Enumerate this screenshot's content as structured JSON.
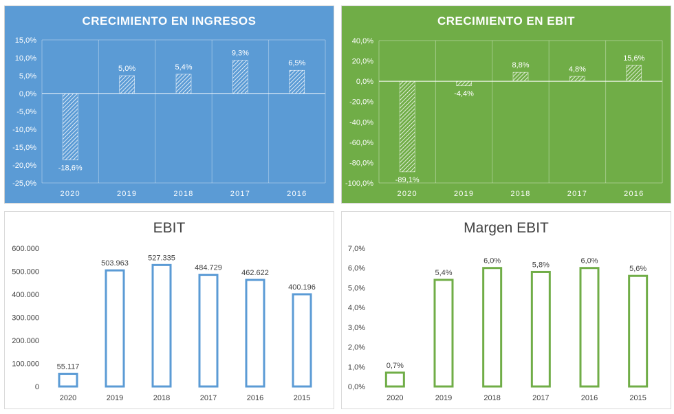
{
  "charts": [
    {
      "title": "CRECIMIENTO EN INGRESOS",
      "chart_data": {
        "type": "bar",
        "categories": [
          "2020",
          "2019",
          "2018",
          "2017",
          "2016"
        ],
        "values": [
          -18.6,
          5.0,
          5.4,
          9.3,
          6.5
        ],
        "data_labels": [
          "-18,6%",
          "5,0%",
          "5,4%",
          "9,3%",
          "6,5%"
        ],
        "yticks": [
          "15,0%",
          "10,0%",
          "5,0%",
          "0,0%",
          "-5,0%",
          "-10,0%",
          "-15,0%",
          "-20,0%",
          "-25,0%"
        ],
        "ylim": [
          -25,
          15
        ],
        "xlabel": "",
        "ylabel": "",
        "grid": true
      }
    },
    {
      "title": "CRECIMIENTO EN EBIT",
      "chart_data": {
        "type": "bar",
        "categories": [
          "2020",
          "2019",
          "2018",
          "2017",
          "2016"
        ],
        "values": [
          -89.1,
          -4.4,
          8.8,
          4.8,
          15.6
        ],
        "data_labels": [
          "-89,1%",
          "-4,4%",
          "8,8%",
          "4,8%",
          "15,6%"
        ],
        "yticks": [
          "40,0%",
          "20,0%",
          "0,0%",
          "-20,0%",
          "-40,0%",
          "-60,0%",
          "-80,0%",
          "-100,0%"
        ],
        "ylim": [
          -100,
          40
        ],
        "xlabel": "",
        "ylabel": "",
        "grid": true
      }
    },
    {
      "title": "EBIT",
      "chart_data": {
        "type": "bar",
        "categories": [
          "2020",
          "2019",
          "2018",
          "2017",
          "2016",
          "2015"
        ],
        "values": [
          55117,
          503963,
          527335,
          484729,
          462622,
          400196
        ],
        "data_labels": [
          "55.117",
          "503.963",
          "527.335",
          "484.729",
          "462.622",
          "400.196"
        ],
        "yticks": [
          "600.000",
          "500.000",
          "400.000",
          "300.000",
          "200.000",
          "100.000",
          "0"
        ],
        "ylim": [
          0,
          600000
        ],
        "xlabel": "",
        "ylabel": "",
        "grid": false
      }
    },
    {
      "title": "Margen EBIT",
      "chart_data": {
        "type": "bar",
        "categories": [
          "2020",
          "2019",
          "2018",
          "2017",
          "2016",
          "2015"
        ],
        "values": [
          0.7,
          5.4,
          6.0,
          5.8,
          6.0,
          5.6
        ],
        "data_labels": [
          "0,7%",
          "5,4%",
          "6,0%",
          "5,8%",
          "6,0%",
          "5,6%"
        ],
        "yticks": [
          "7,0%",
          "6,0%",
          "5,0%",
          "4,0%",
          "3,0%",
          "2,0%",
          "1,0%",
          "0,0%"
        ],
        "ylim": [
          0,
          7
        ],
        "xlabel": "",
        "ylabel": "",
        "grid": false
      }
    }
  ],
  "colors": {
    "ingresos_panel_bg": "#5b9bd5",
    "ebit_growth_panel_bg": "#70ad47",
    "ebit_bar_outline": "#5b9bd5",
    "margen_bar_outline": "#70ad47",
    "light_text": "#ffffff",
    "dark_text": "#404040"
  }
}
